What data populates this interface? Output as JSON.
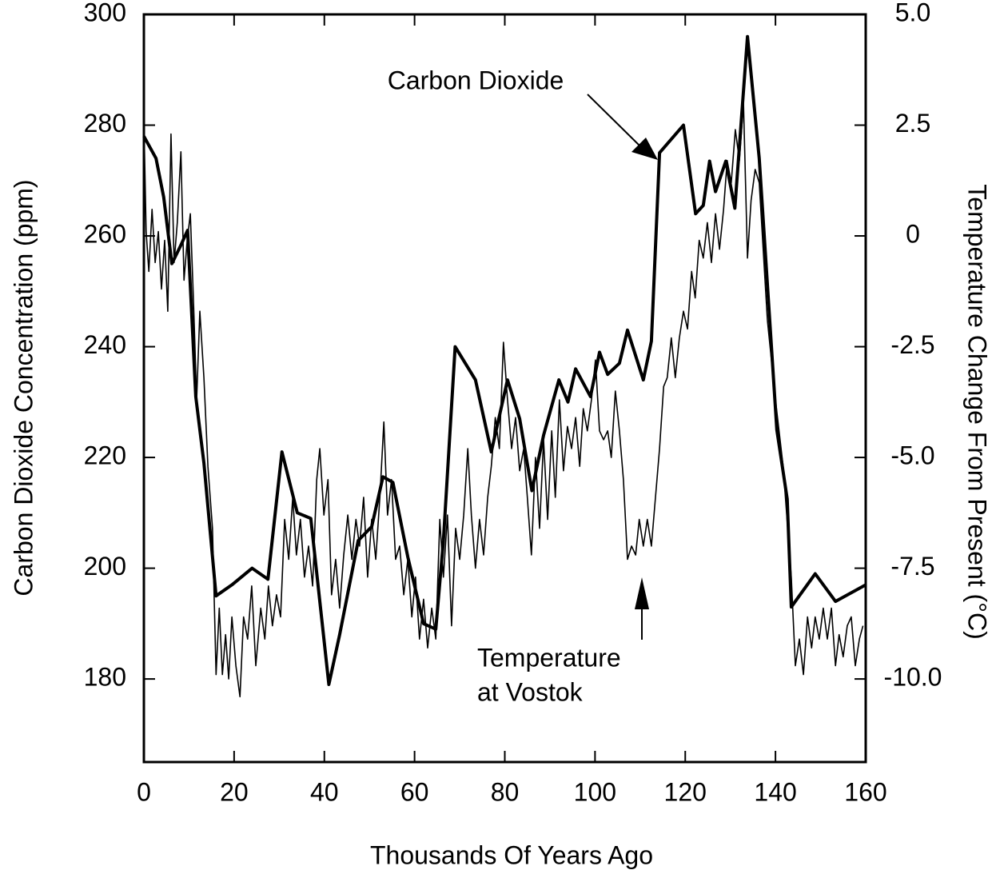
{
  "chart_data": {
    "type": "line",
    "xlabel": "Thousands Of Years Ago",
    "ylabel": "Carbon Dioxide Concentration (ppm)",
    "y2label": "Temperature Change From Present (°C)",
    "annotations": [
      [
        "Carbon Dioxide"
      ],
      [
        "Temperature",
        "at Vostok"
      ]
    ],
    "xlim": [
      0,
      160
    ],
    "xticks": [
      0,
      20,
      40,
      60,
      80,
      100,
      120,
      140,
      160
    ],
    "ylim": [
      165,
      300
    ],
    "yticks": [
      180,
      200,
      220,
      240,
      260,
      280,
      300
    ],
    "y2lim": [
      -11.875,
      5
    ],
    "y2ticks": [
      {
        "value": -10,
        "label": "-10.0"
      },
      -7.5,
      {
        "value": -5,
        "label": "-5.0"
      },
      -2.5,
      0,
      2.5,
      {
        "value": 5,
        "label": "5.0"
      }
    ],
    "grid": false,
    "series": [
      {
        "color": "#000000",
        "width": 4,
        "x": [
          0,
          2.7,
          4.4,
          6.2,
          8,
          9.7,
          11.5,
          13.3,
          16,
          19.5,
          24,
          27.5,
          30.6,
          34,
          37,
          41,
          43.4,
          47.5,
          50.5,
          53,
          55.2,
          58.5,
          62,
          64.7,
          66.4,
          69,
          73.5,
          77,
          80.6,
          83.3,
          86,
          88.6,
          92,
          94,
          95.7,
          99,
          101,
          102.8,
          105.4,
          107.2,
          110.7,
          112.5,
          114.3,
          119.6,
          122.3,
          124,
          125.4,
          126.7,
          129,
          131,
          133.8,
          136.4,
          140.3,
          142.6,
          143.5,
          148.8,
          153.3,
          160
        ],
        "values": [
          278,
          274,
          267,
          255,
          258,
          261,
          231,
          219,
          195,
          197,
          200,
          198,
          221,
          210,
          209,
          179,
          188,
          205,
          207.5,
          216.5,
          215.5,
          202,
          190,
          189,
          205,
          240,
          234,
          221,
          234,
          227,
          214,
          224,
          234,
          230,
          236,
          231,
          239,
          235,
          237,
          243,
          234,
          241,
          275,
          280,
          264,
          265.5,
          273.5,
          268,
          273.5,
          265,
          296,
          274,
          225,
          212.5,
          193,
          199,
          194,
          197
        ]
      },
      {
        "color": "#000000",
        "width": 1.6,
        "axis": "y2",
        "x": [
          0,
          0.5,
          1.1,
          1.8,
          2.5,
          3.2,
          3.9,
          4.6,
          5.3,
          6,
          6.7,
          7.4,
          8.2,
          8.9,
          9.6,
          10.3,
          11,
          11.7,
          12.4,
          13.3,
          14.2,
          15.2,
          16,
          16.7,
          17.4,
          18.1,
          18.8,
          19.5,
          20.4,
          21.3,
          22.1,
          23,
          23.9,
          24.8,
          25.9,
          26.8,
          27.6,
          28.5,
          29.4,
          30.3,
          31.2,
          32.1,
          33,
          33.8,
          34.7,
          35.6,
          36.5,
          37.4,
          38.3,
          39,
          39.9,
          40.8,
          41.6,
          42.5,
          43.4,
          44.3,
          45.2,
          46.1,
          47,
          47.8,
          48.7,
          49.6,
          50.5,
          51.4,
          52.3,
          53.2,
          54,
          54.9,
          55.8,
          56.7,
          57.6,
          58.5,
          59.4,
          60.2,
          61.1,
          62,
          62.9,
          63.8,
          64.7,
          65.6,
          66.4,
          67.3,
          68.2,
          69.1,
          70,
          70.9,
          71.8,
          72.6,
          73.5,
          74.4,
          75.3,
          76.2,
          77,
          77.9,
          78.8,
          79.7,
          80.6,
          81.5,
          82.4,
          83.3,
          84.2,
          85,
          85.9,
          86.8,
          87.7,
          88.6,
          89.5,
          90.4,
          91.2,
          92.1,
          93,
          93.9,
          94.8,
          95.7,
          96.6,
          97.4,
          98.3,
          99.2,
          100.1,
          101,
          101.9,
          102.8,
          103.6,
          104.5,
          105.4,
          106.3,
          107.2,
          108.1,
          109,
          109.8,
          110.7,
          111.6,
          112.5,
          113.4,
          114.3,
          115.2,
          116,
          116.9,
          117.8,
          118.7,
          119.6,
          120.5,
          121.4,
          122.2,
          123.1,
          124,
          124.9,
          125.8,
          126.7,
          127.6,
          128.5,
          129.3,
          130.2,
          131.1,
          132,
          132.9,
          133.8,
          134.6,
          135.5,
          136.4,
          138.2,
          140,
          141.7,
          143.5,
          144.4,
          145.3,
          146.2,
          147.1,
          148,
          148.8,
          149.7,
          150.6,
          151.5,
          152.4,
          153.3,
          154.1,
          155,
          155.9,
          156.8,
          157.7,
          158.6,
          159.4
        ],
        "values": [
          2.6,
          0.1,
          -0.8,
          0.6,
          -0.6,
          0.1,
          -1.2,
          -0.1,
          -1.7,
          2.3,
          -0.6,
          0.3,
          1.9,
          -1.0,
          -0.1,
          0.5,
          -1.5,
          -3.7,
          -1.7,
          -3.2,
          -5.2,
          -6.6,
          -9.9,
          -8.4,
          -9.9,
          -9.0,
          -10.0,
          -8.6,
          -9.7,
          -10.4,
          -8.6,
          -9.1,
          -7.9,
          -9.7,
          -8.4,
          -9.1,
          -7.9,
          -8.8,
          -8.1,
          -8.6,
          -6.4,
          -7.3,
          -5.9,
          -7.2,
          -6.4,
          -7.7,
          -7.0,
          -7.9,
          -5.5,
          -4.8,
          -6.3,
          -5.5,
          -8.1,
          -7.3,
          -8.4,
          -7.2,
          -6.3,
          -7.3,
          -6.4,
          -7.0,
          -5.9,
          -7.7,
          -6.4,
          -7.3,
          -5.9,
          -4.2,
          -6.3,
          -5.5,
          -7.3,
          -7.0,
          -8.1,
          -7.3,
          -8.6,
          -7.7,
          -9.1,
          -8.2,
          -9.3,
          -8.4,
          -9.1,
          -6.4,
          -7.7,
          -6.3,
          -8.8,
          -6.6,
          -7.3,
          -6.3,
          -4.8,
          -6.3,
          -7.5,
          -6.4,
          -7.2,
          -5.9,
          -5.2,
          -4.1,
          -4.8,
          -2.4,
          -3.7,
          -4.8,
          -4.1,
          -5.3,
          -4.8,
          -5.9,
          -7.2,
          -5.0,
          -6.6,
          -4.6,
          -6.4,
          -4.4,
          -5.9,
          -3.7,
          -5.3,
          -4.3,
          -4.8,
          -4.1,
          -5.2,
          -3.9,
          -4.4,
          -3.7,
          -2.8,
          -4.4,
          -4.6,
          -4.4,
          -5.0,
          -3.5,
          -4.4,
          -5.5,
          -7.3,
          -7.0,
          -7.2,
          -6.4,
          -7.0,
          -6.4,
          -7.0,
          -5.9,
          -4.8,
          -3.4,
          -3.2,
          -2.3,
          -3.2,
          -2.3,
          -1.7,
          -2.1,
          -0.8,
          -1.4,
          -0.1,
          -0.5,
          0.3,
          -0.6,
          0.5,
          -0.3,
          0.6,
          1.7,
          1.2,
          2.4,
          1.7,
          3.0,
          -0.5,
          0.8,
          1.5,
          1.2,
          -1.9,
          -3.7,
          -5.2,
          -7.7,
          -9.7,
          -9.1,
          -9.9,
          -8.6,
          -9.3,
          -8.6,
          -9.1,
          -8.4,
          -9.1,
          -8.4,
          -9.7,
          -9.0,
          -9.5,
          -8.8,
          -8.6,
          -9.7,
          -9.1,
          -8.8
        ]
      }
    ]
  }
}
